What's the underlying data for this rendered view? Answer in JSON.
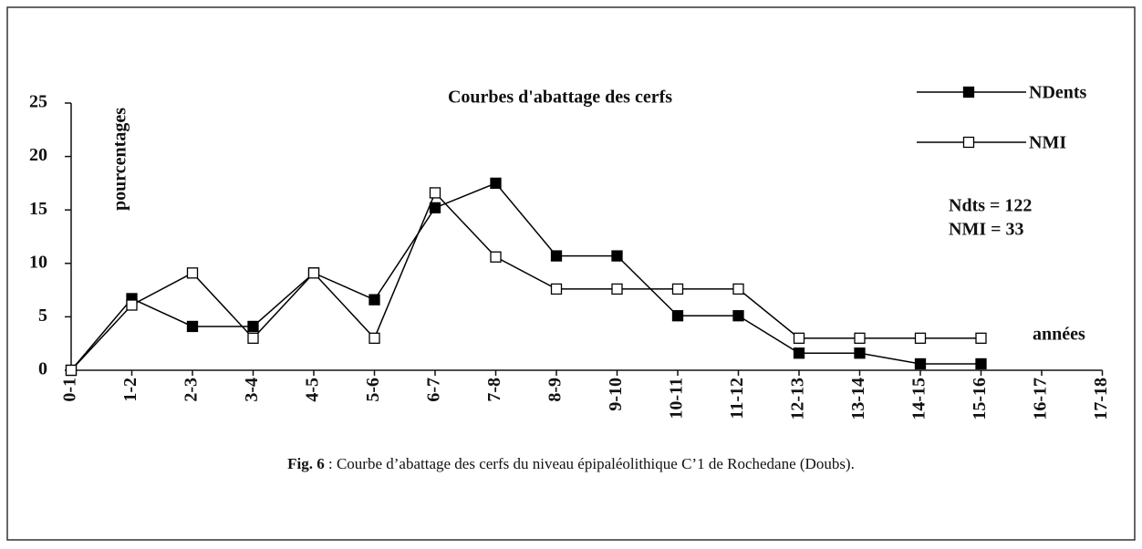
{
  "chart_data": {
    "type": "line",
    "title": "Courbes d'abattage des cerfs",
    "y_label": "pourcentages",
    "x_label": "années",
    "annotations": [
      "Ndts = 122",
      "NMI = 33"
    ],
    "caption": {
      "label": "Fig. 6",
      "text": " : Courbe d’abattage des cerfs du niveau épipaléolithique C’1 de Rochedane (Doubs)."
    },
    "categories": [
      "0-1",
      "1-2",
      "2-3",
      "3-4",
      "4-5",
      "5-6",
      "6-7",
      "7-8",
      "8-9",
      "9-10",
      "10-11",
      "11-12",
      "12-13",
      "13-14",
      "14-15",
      "15-16",
      "16-17",
      "17-18"
    ],
    "series": [
      {
        "name": "NDents",
        "color": "#000000",
        "marker": "filled",
        "values": [
          0,
          6.7,
          4.1,
          4.1,
          9.1,
          6.6,
          15.2,
          17.5,
          10.7,
          10.7,
          5.1,
          5.1,
          1.6,
          1.6,
          0.6,
          0.6,
          null,
          null
        ]
      },
      {
        "name": "NMI",
        "color": "#000000",
        "marker": "hollow",
        "values": [
          0,
          6.1,
          9.1,
          3.0,
          9.1,
          3.0,
          16.6,
          10.6,
          7.6,
          7.6,
          7.6,
          7.6,
          3.0,
          3.0,
          3.0,
          3.0,
          null,
          null
        ]
      }
    ],
    "ylim": [
      0,
      25
    ],
    "yticks": [
      0,
      5,
      10,
      15,
      20,
      25
    ],
    "grid": false
  }
}
